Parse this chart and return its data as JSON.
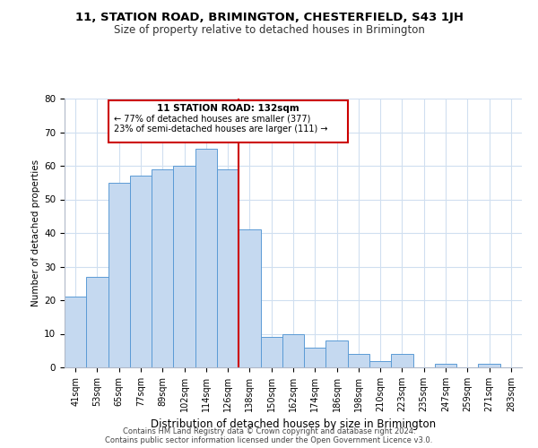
{
  "title": "11, STATION ROAD, BRIMINGTON, CHESTERFIELD, S43 1JH",
  "subtitle": "Size of property relative to detached houses in Brimington",
  "xlabel": "Distribution of detached houses by size in Brimington",
  "ylabel": "Number of detached properties",
  "bar_labels": [
    "41sqm",
    "53sqm",
    "65sqm",
    "77sqm",
    "89sqm",
    "102sqm",
    "114sqm",
    "126sqm",
    "138sqm",
    "150sqm",
    "162sqm",
    "174sqm",
    "186sqm",
    "198sqm",
    "210sqm",
    "223sqm",
    "235sqm",
    "247sqm",
    "259sqm",
    "271sqm",
    "283sqm"
  ],
  "bar_heights": [
    21,
    27,
    55,
    57,
    59,
    60,
    65,
    59,
    41,
    9,
    10,
    6,
    8,
    4,
    2,
    4,
    0,
    1,
    0,
    1,
    0
  ],
  "bar_color": "#c5d9f0",
  "bar_edge_color": "#5b9bd5",
  "vline_x": 7.5,
  "vline_color": "#cc0000",
  "annotation_title": "11 STATION ROAD: 132sqm",
  "annotation_line1": "← 77% of detached houses are smaller (377)",
  "annotation_line2": "23% of semi-detached houses are larger (111) →",
  "annotation_box_color": "#cc0000",
  "ylim": [
    0,
    80
  ],
  "yticks": [
    0,
    10,
    20,
    30,
    40,
    50,
    60,
    70,
    80
  ],
  "footer1": "Contains HM Land Registry data © Crown copyright and database right 2024.",
  "footer2": "Contains public sector information licensed under the Open Government Licence v3.0.",
  "background_color": "#ffffff",
  "grid_color": "#d0dff0"
}
